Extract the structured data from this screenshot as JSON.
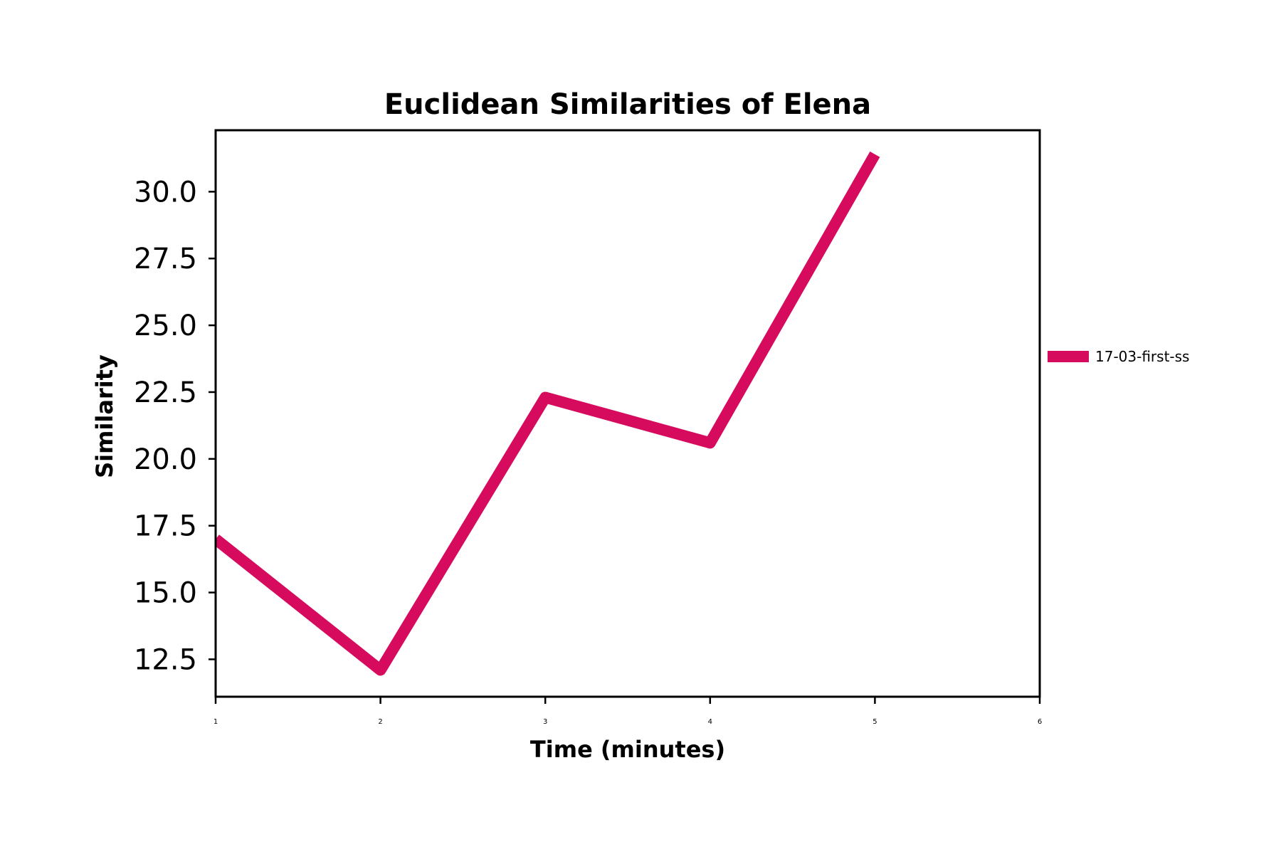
{
  "chart_data": {
    "type": "line",
    "title": "Euclidean Similarities of Elena",
    "xlabel": "Time (minutes)",
    "ylabel": "Similarity",
    "xlim": [
      1,
      6
    ],
    "ylim": [
      11.1,
      32.3
    ],
    "xticks": [
      1,
      2,
      3,
      4,
      5,
      6
    ],
    "xtick_labels": [
      "1",
      "2",
      "3",
      "4",
      "5",
      "6"
    ],
    "yticks": [
      12.5,
      15.0,
      17.5,
      20.0,
      22.5,
      25.0,
      27.5,
      30.0
    ],
    "ytick_labels": [
      "12.5",
      "15.0",
      "17.5",
      "20.0",
      "22.5",
      "25.0",
      "27.5",
      "30.0"
    ],
    "grid": false,
    "legend_position": "right",
    "series": [
      {
        "name": "17-03-first-ss",
        "color": "#d60b5e",
        "x": [
          1,
          2,
          3,
          4,
          5
        ],
        "y": [
          17.0,
          12.1,
          22.3,
          20.6,
          31.4
        ]
      }
    ]
  }
}
